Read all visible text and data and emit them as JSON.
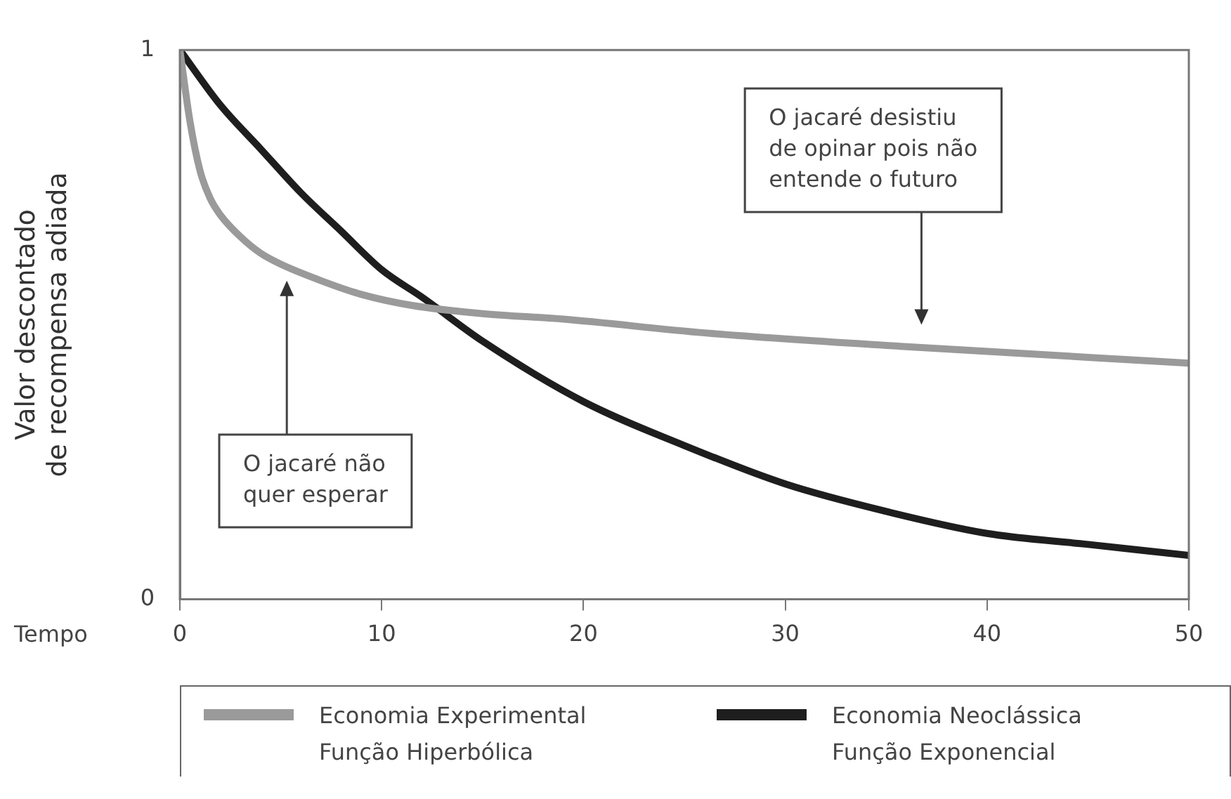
{
  "chart_data": {
    "type": "line",
    "xlabel": "Tempo",
    "ylabel": "Valor descontado\nde recompensa adiada",
    "xlim": [
      0,
      50
    ],
    "ylim": [
      0,
      1
    ],
    "xticks": [
      0,
      10,
      20,
      30,
      40,
      50
    ],
    "yticks": [
      0,
      1
    ],
    "grid": false,
    "legend": "bottom",
    "marker": "none",
    "line_style": "solid",
    "series": [
      {
        "name": "Economia Experimental\nFunção Hiperbólica",
        "color": "#9a9a9a",
        "x": [
          0,
          0.5,
          1,
          1.5,
          2,
          3,
          4,
          5,
          7,
          9,
          11.5,
          15,
          19,
          26,
          36,
          50
        ],
        "values": [
          1,
          0.87,
          0.78,
          0.73,
          0.7,
          0.66,
          0.63,
          0.61,
          0.58,
          0.555,
          0.535,
          0.52,
          0.51,
          0.485,
          0.46,
          0.43
        ]
      },
      {
        "name": "Economia Neoclássica\nFunção Exponencial",
        "color": "#1e1e1e",
        "x": [
          0,
          2,
          4,
          6,
          8,
          10,
          12,
          15,
          20,
          25,
          30,
          35,
          40,
          45,
          50
        ],
        "values": [
          1,
          0.9,
          0.82,
          0.74,
          0.67,
          0.6,
          0.55,
          0.47,
          0.36,
          0.28,
          0.21,
          0.16,
          0.12,
          0.1,
          0.08
        ]
      }
    ],
    "annotations": [
      "O jacaré não\nquer esperar",
      "O jacaré desistiu\nde opinar pois não\nentende o futuro"
    ]
  }
}
